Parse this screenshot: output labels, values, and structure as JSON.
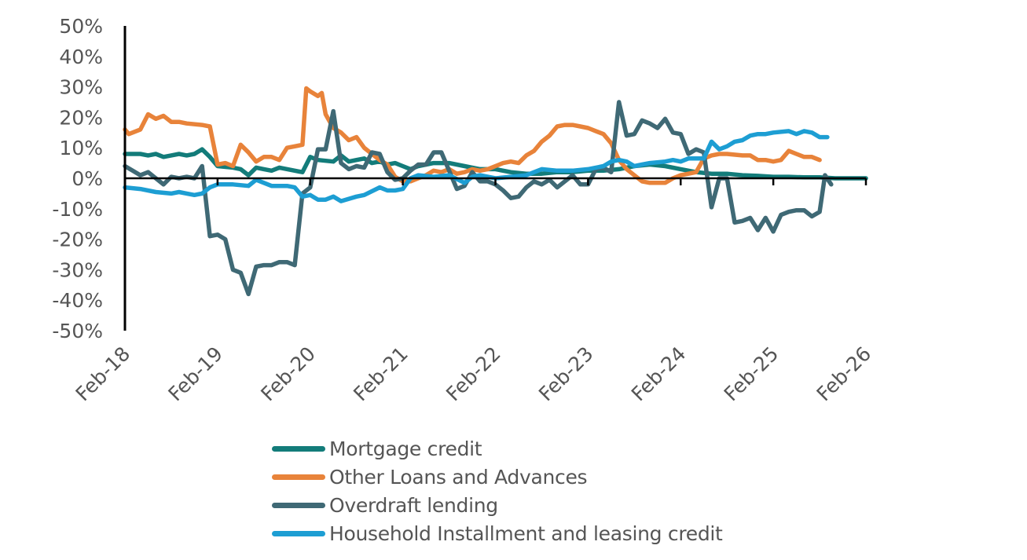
{
  "chart_data": {
    "type": "line",
    "title": "",
    "xlabel": "",
    "ylabel": "",
    "ylim": [
      -50,
      50
    ],
    "y_ticks": [
      50,
      40,
      30,
      20,
      10,
      0,
      -10,
      -20,
      -30,
      -40,
      -50
    ],
    "y_tick_labels": [
      "50%",
      "40%",
      "30%",
      "20%",
      "10%",
      "0%",
      "-10%",
      "-20%",
      "-30%",
      "-40%",
      "-50%"
    ],
    "x_range": [
      0,
      96
    ],
    "x_ticks": [
      0,
      12,
      24,
      36,
      48,
      60,
      72,
      84,
      96
    ],
    "x_tick_labels": [
      "Feb-18",
      "Feb-19",
      "Feb-20",
      "Feb-21",
      "Feb-22",
      "Feb-23",
      "Feb-24",
      "Feb-25",
      "Feb-26"
    ],
    "x_unit": "months since Feb-18",
    "legend_position": "bottom",
    "series": [
      {
        "name": "Mortgage credit",
        "color": "#137c7a",
        "points": [
          [
            0,
            8
          ],
          [
            2,
            8
          ],
          [
            3,
            7.5
          ],
          [
            4,
            8
          ],
          [
            5,
            7
          ],
          [
            6,
            7.5
          ],
          [
            7,
            8
          ],
          [
            8,
            7.5
          ],
          [
            9,
            8
          ],
          [
            10,
            9.5
          ],
          [
            11,
            7
          ],
          [
            12,
            4
          ],
          [
            14,
            3.5
          ],
          [
            15,
            3
          ],
          [
            16,
            1
          ],
          [
            17,
            3.5
          ],
          [
            18,
            3
          ],
          [
            19,
            2.5
          ],
          [
            20,
            3.5
          ],
          [
            22,
            2.5
          ],
          [
            23,
            2
          ],
          [
            24,
            7
          ],
          [
            25,
            6
          ],
          [
            27,
            5.5
          ],
          [
            28,
            7.5
          ],
          [
            29,
            5.5
          ],
          [
            30,
            6
          ],
          [
            31,
            6.5
          ],
          [
            32,
            5
          ],
          [
            33,
            5.5
          ],
          [
            34,
            4.5
          ],
          [
            35,
            5
          ],
          [
            36,
            4
          ],
          [
            37,
            3
          ],
          [
            38,
            4
          ],
          [
            39,
            4.5
          ],
          [
            40,
            5
          ],
          [
            42,
            5
          ],
          [
            44,
            4
          ],
          [
            46,
            3
          ],
          [
            48,
            3
          ],
          [
            50,
            2
          ],
          [
            52,
            1.5
          ],
          [
            54,
            1.5
          ],
          [
            56,
            2
          ],
          [
            58,
            2
          ],
          [
            60,
            2.5
          ],
          [
            62,
            2.5
          ],
          [
            64,
            3
          ],
          [
            66,
            4
          ],
          [
            68,
            4.5
          ],
          [
            70,
            4
          ],
          [
            72,
            3
          ],
          [
            74,
            2
          ],
          [
            76,
            1.5
          ],
          [
            78,
            1.5
          ],
          [
            80,
            1
          ],
          [
            82,
            0.8
          ],
          [
            84,
            0.5
          ],
          [
            86,
            0.5
          ],
          [
            88,
            0.3
          ],
          [
            90,
            0.3
          ],
          [
            92,
            0
          ],
          [
            94,
            0
          ],
          [
            96,
            0
          ]
        ]
      },
      {
        "name": "Other Loans and Advances",
        "color": "#e8833a",
        "points": [
          [
            0,
            16
          ],
          [
            0.5,
            14.5
          ],
          [
            2,
            16
          ],
          [
            3,
            21
          ],
          [
            4,
            19.5
          ],
          [
            5,
            20.5
          ],
          [
            6,
            18.5
          ],
          [
            7,
            18.5
          ],
          [
            8,
            18
          ],
          [
            10,
            17.5
          ],
          [
            11,
            17
          ],
          [
            12,
            4.5
          ],
          [
            13,
            5
          ],
          [
            14,
            4
          ],
          [
            15,
            11
          ],
          [
            16,
            8.5
          ],
          [
            17,
            5.5
          ],
          [
            18,
            7
          ],
          [
            19,
            7
          ],
          [
            20,
            6
          ],
          [
            21,
            10
          ],
          [
            22,
            10.5
          ],
          [
            23,
            11
          ],
          [
            23.5,
            29.5
          ],
          [
            24,
            28.5
          ],
          [
            25,
            27
          ],
          [
            25.5,
            28
          ],
          [
            26,
            21
          ],
          [
            27,
            16.5
          ],
          [
            28,
            15
          ],
          [
            29,
            12.5
          ],
          [
            30,
            13.5
          ],
          [
            31,
            10
          ],
          [
            32,
            8
          ],
          [
            33,
            6
          ],
          [
            34,
            4.5
          ],
          [
            35,
            0.5
          ],
          [
            36,
            -1
          ],
          [
            37,
            -1
          ],
          [
            38,
            0
          ],
          [
            39,
            1
          ],
          [
            40,
            2.5
          ],
          [
            41,
            2
          ],
          [
            42,
            3
          ],
          [
            43,
            1.5
          ],
          [
            44,
            2
          ],
          [
            45,
            3
          ],
          [
            46,
            2.5
          ],
          [
            47,
            3
          ],
          [
            48,
            4
          ],
          [
            49,
            5
          ],
          [
            50,
            5.5
          ],
          [
            51,
            5
          ],
          [
            52,
            7.5
          ],
          [
            53,
            9
          ],
          [
            54,
            12
          ],
          [
            55,
            14
          ],
          [
            56,
            17
          ],
          [
            57,
            17.5
          ],
          [
            58,
            17.5
          ],
          [
            59,
            17
          ],
          [
            60,
            16.5
          ],
          [
            61,
            15.5
          ],
          [
            62,
            14.5
          ],
          [
            63,
            11.5
          ],
          [
            64,
            6
          ],
          [
            65,
            3
          ],
          [
            66,
            1
          ],
          [
            67,
            -1
          ],
          [
            68,
            -1.5
          ],
          [
            69,
            -1.5
          ],
          [
            70,
            -1.5
          ],
          [
            71,
            0
          ],
          [
            72,
            1
          ],
          [
            73,
            1.5
          ],
          [
            74,
            2
          ],
          [
            75,
            6.5
          ],
          [
            76,
            7.5
          ],
          [
            77,
            8
          ],
          [
            78,
            8
          ],
          [
            80,
            7.5
          ],
          [
            81,
            7.5
          ],
          [
            82,
            6
          ],
          [
            83,
            6
          ],
          [
            84,
            5.5
          ],
          [
            85,
            6
          ],
          [
            86,
            9
          ],
          [
            87,
            8
          ],
          [
            88,
            7
          ],
          [
            89,
            7
          ],
          [
            90,
            6
          ]
        ]
      },
      {
        "name": "Overdraft lending",
        "color": "#3f6975",
        "points": [
          [
            0,
            4
          ],
          [
            1,
            2.5
          ],
          [
            2,
            1
          ],
          [
            3,
            2
          ],
          [
            4,
            0
          ],
          [
            5,
            -2
          ],
          [
            6,
            0.5
          ],
          [
            7,
            0
          ],
          [
            8,
            0.5
          ],
          [
            9,
            0
          ],
          [
            10,
            4
          ],
          [
            11,
            -19
          ],
          [
            12,
            -18.5
          ],
          [
            13,
            -20
          ],
          [
            14,
            -30
          ],
          [
            15,
            -31
          ],
          [
            16,
            -38
          ],
          [
            17,
            -29
          ],
          [
            18,
            -28.5
          ],
          [
            19,
            -28.5
          ],
          [
            20,
            -27.5
          ],
          [
            21,
            -27.5
          ],
          [
            22,
            -28.5
          ],
          [
            23,
            -5
          ],
          [
            24,
            -3
          ],
          [
            25,
            9.5
          ],
          [
            26,
            9.5
          ],
          [
            27,
            22
          ],
          [
            28,
            5
          ],
          [
            29,
            3
          ],
          [
            30,
            4
          ],
          [
            31,
            3.5
          ],
          [
            32,
            8.5
          ],
          [
            33,
            8
          ],
          [
            34,
            2
          ],
          [
            35,
            -0.5
          ],
          [
            36,
            0
          ],
          [
            37,
            2.5
          ],
          [
            38,
            4.5
          ],
          [
            39,
            4.5
          ],
          [
            40,
            8.5
          ],
          [
            41,
            8.5
          ],
          [
            42,
            2.5
          ],
          [
            43,
            -3.5
          ],
          [
            44,
            -2.5
          ],
          [
            45,
            2
          ],
          [
            46,
            -1
          ],
          [
            47,
            -1
          ],
          [
            48,
            -2
          ],
          [
            49,
            -4
          ],
          [
            50,
            -6.5
          ],
          [
            51,
            -6
          ],
          [
            52,
            -3
          ],
          [
            53,
            -1
          ],
          [
            54,
            -2
          ],
          [
            55,
            -0.5
          ],
          [
            56,
            -3
          ],
          [
            57,
            -1
          ],
          [
            58,
            1
          ],
          [
            59,
            -2
          ],
          [
            60,
            -2
          ],
          [
            61,
            3
          ],
          [
            62,
            3.5
          ],
          [
            63,
            2
          ],
          [
            64,
            25
          ],
          [
            65,
            14
          ],
          [
            66,
            14.5
          ],
          [
            67,
            19
          ],
          [
            68,
            18
          ],
          [
            69,
            16.5
          ],
          [
            70,
            19.5
          ],
          [
            71,
            15
          ],
          [
            72,
            14.5
          ],
          [
            73,
            8
          ],
          [
            74,
            9.5
          ],
          [
            75,
            8.5
          ],
          [
            76,
            -9.5
          ],
          [
            77,
            0
          ],
          [
            78,
            0
          ],
          [
            79,
            -14.5
          ],
          [
            80,
            -14
          ],
          [
            81,
            -13
          ],
          [
            82,
            -17
          ],
          [
            83,
            -13
          ],
          [
            84,
            -17.5
          ],
          [
            85,
            -12
          ],
          [
            86,
            -11
          ],
          [
            87,
            -10.5
          ],
          [
            88,
            -10.5
          ],
          [
            89,
            -12.5
          ],
          [
            90,
            -11
          ],
          [
            90.7,
            1
          ],
          [
            91.5,
            -2
          ]
        ]
      },
      {
        "name": "Household Installment and leasing credit",
        "color": "#1d9ed3",
        "points": [
          [
            0,
            -3
          ],
          [
            2,
            -3.5
          ],
          [
            4,
            -4.5
          ],
          [
            6,
            -5
          ],
          [
            7,
            -4.5
          ],
          [
            8,
            -5
          ],
          [
            9,
            -5.5
          ],
          [
            10,
            -5
          ],
          [
            11,
            -3
          ],
          [
            12,
            -2
          ],
          [
            14,
            -2
          ],
          [
            16,
            -2.5
          ],
          [
            17,
            -0.5
          ],
          [
            18,
            -1.5
          ],
          [
            19,
            -2.5
          ],
          [
            21,
            -2.5
          ],
          [
            22,
            -3
          ],
          [
            23,
            -6
          ],
          [
            24,
            -5.5
          ],
          [
            25,
            -7
          ],
          [
            26,
            -7
          ],
          [
            27,
            -6
          ],
          [
            28,
            -7.5
          ],
          [
            30,
            -6
          ],
          [
            31,
            -5.5
          ],
          [
            33,
            -3
          ],
          [
            34,
            -4
          ],
          [
            35,
            -4
          ],
          [
            36,
            -3.5
          ],
          [
            37,
            0
          ],
          [
            38,
            1
          ],
          [
            40,
            0.5
          ],
          [
            42,
            1
          ],
          [
            44,
            -1.5
          ],
          [
            45,
            0.5
          ],
          [
            46,
            1
          ],
          [
            48,
            0
          ],
          [
            50,
            0.5
          ],
          [
            52,
            1
          ],
          [
            54,
            3
          ],
          [
            56,
            2.5
          ],
          [
            58,
            2.5
          ],
          [
            60,
            3
          ],
          [
            62,
            4
          ],
          [
            63,
            5.5
          ],
          [
            64,
            6
          ],
          [
            65,
            5.5
          ],
          [
            66,
            4
          ],
          [
            67,
            4.5
          ],
          [
            68,
            5
          ],
          [
            70,
            5.5
          ],
          [
            71,
            6
          ],
          [
            72,
            5.5
          ],
          [
            73,
            6.5
          ],
          [
            75,
            6.5
          ],
          [
            76,
            12
          ],
          [
            77,
            9.5
          ],
          [
            78,
            10.5
          ],
          [
            79,
            12
          ],
          [
            80,
            12.5
          ],
          [
            81,
            14
          ],
          [
            82,
            14.5
          ],
          [
            83,
            14.5
          ],
          [
            84,
            15
          ],
          [
            86,
            15.5
          ],
          [
            87,
            14.5
          ],
          [
            88,
            15.5
          ],
          [
            89,
            15
          ],
          [
            90,
            13.5
          ],
          [
            91,
            13.5
          ]
        ]
      }
    ]
  }
}
